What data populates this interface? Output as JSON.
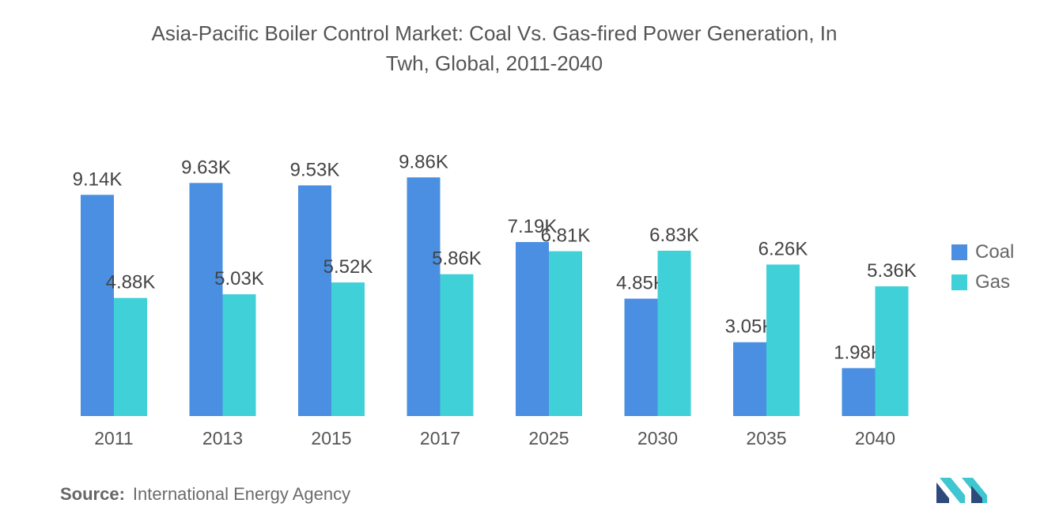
{
  "chart_data": {
    "type": "bar",
    "title_line1": "Asia-Pacific Boiler Control Market: Coal Vs. Gas-fired Power Generation, In",
    "title_line2": "Twh, Global, 2011-2040",
    "categories": [
      "2011",
      "2013",
      "2015",
      "2017",
      "2025",
      "2030",
      "2035",
      "2040"
    ],
    "series": [
      {
        "name": "Coal",
        "color": "#4a8fe2",
        "values": [
          9140,
          9630,
          9530,
          9860,
          7190,
          4850,
          3050,
          1980
        ],
        "labels": [
          "9.14K",
          "9.63K",
          "9.53K",
          "9.86K",
          "7.19K",
          "4.85K",
          "3.05K",
          "1.98K"
        ]
      },
      {
        "name": "Gas",
        "color": "#3fd0d8",
        "values": [
          4880,
          5030,
          5520,
          5860,
          6810,
          6830,
          6260,
          5360
        ],
        "labels": [
          "4.88K",
          "5.03K",
          "5.52K",
          "5.86K",
          "6.81K",
          "6.83K",
          "6.26K",
          "5.36K"
        ]
      }
    ],
    "xlabel": "",
    "ylabel": "",
    "ylim": [
      0,
      10000
    ],
    "grid": false,
    "legend_position": "right"
  },
  "source": {
    "label": "Source:",
    "text": "International Energy Agency"
  },
  "logo": {
    "icon": "mordor-logo-icon"
  }
}
